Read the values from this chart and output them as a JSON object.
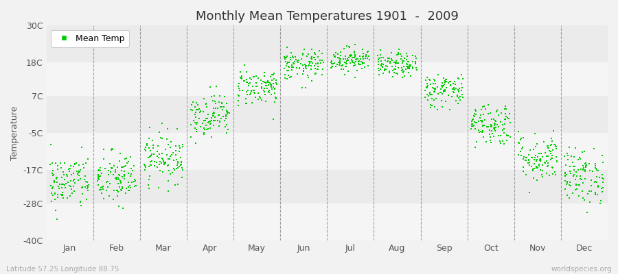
{
  "title": "Monthly Mean Temperatures 1901  -  2009",
  "ylabel": "Temperature",
  "bottom_left_text": "Latitude 57.25 Longitude 88.75",
  "bottom_right_text": "worldspecies.org",
  "legend_label": "Mean Temp",
  "dot_color": "#00cc00",
  "background_color": "#f2f2f2",
  "band_colors": [
    "#ebebeb",
    "#f5f5f5"
  ],
  "ytick_labels": [
    "30C",
    "18C",
    "7C",
    "-5C",
    "-17C",
    "-28C",
    "-40C"
  ],
  "ytick_values": [
    30,
    18,
    7,
    -5,
    -17,
    -28,
    -40
  ],
  "months": [
    "Jan",
    "Feb",
    "Mar",
    "Apr",
    "May",
    "Jun",
    "Jul",
    "Aug",
    "Sep",
    "Oct",
    "Nov",
    "Dec"
  ],
  "ylim": [
    -40,
    30
  ],
  "years": 109,
  "mean_temps": [
    -21,
    -20,
    -13,
    1,
    10,
    17,
    19,
    17,
    9,
    -2,
    -13,
    -19
  ],
  "std_temps": [
    4.5,
    4.5,
    4.0,
    3.5,
    3.0,
    2.5,
    2.0,
    2.0,
    2.8,
    3.5,
    4.0,
    4.5
  ]
}
